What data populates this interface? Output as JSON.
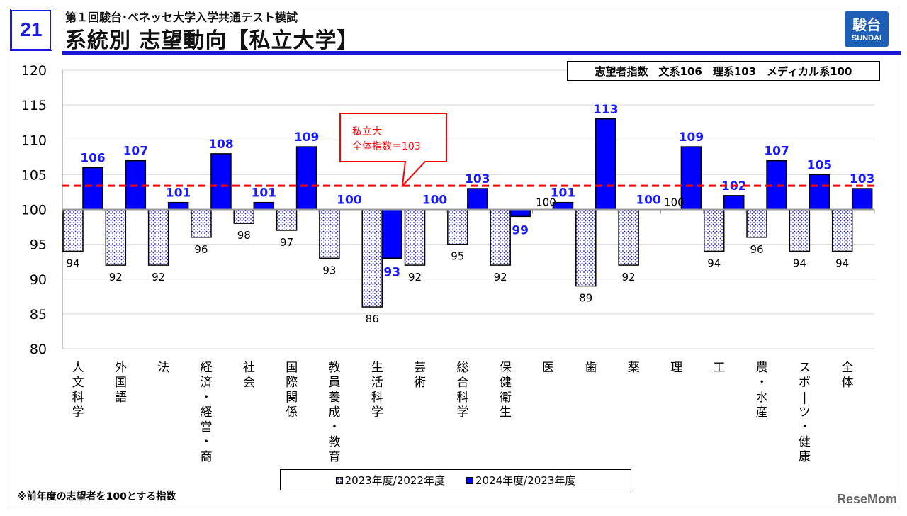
{
  "header": {
    "slide_number": "21",
    "subtitle": "第１回駿台･ベネッセ大学入学共通テスト模試",
    "title": "系統別 志望動向【私立大学】",
    "logo_kanji": "駿台",
    "logo_en": "SUNDAI"
  },
  "index_box": "志望者指数　文系106　理系103　メディカル系100",
  "note": "※前年度の志望者を100とする指数",
  "watermark": "ReseMom",
  "colors": {
    "series2024": "#0000ff",
    "series2023_dots": "#1a1ad0",
    "reference": "#ff0000"
  },
  "chart_data": {
    "type": "bar",
    "categories": [
      "人文科学",
      "外国語",
      "法",
      "経済・経営・商",
      "社会",
      "国際関係",
      "教員養成・教育",
      "生活科学",
      "芸術",
      "総合科学",
      "保健衛生",
      "医",
      "歯",
      "薬",
      "理",
      "工",
      "農・水産",
      "スポーツ・健康",
      "全体"
    ],
    "series": [
      {
        "name": "2023年度/2022年度",
        "values": [
          94,
          92,
          92,
          96,
          98,
          97,
          93,
          86,
          92,
          95,
          92,
          100,
          89,
          92,
          100,
          94,
          96,
          94,
          94
        ]
      },
      {
        "name": "2024年度/2023年度",
        "values": [
          106,
          107,
          101,
          108,
          101,
          109,
          100,
          93,
          100,
          103,
          99,
          101,
          113,
          100,
          109,
          102,
          107,
          105,
          103
        ]
      }
    ],
    "baseline": 100,
    "ylim": [
      80,
      120
    ],
    "yticks": [
      80,
      85,
      90,
      95,
      100,
      105,
      110,
      115,
      120
    ],
    "grid": true,
    "legend": "bottom",
    "reference_line": {
      "value": 103.4,
      "label_line1": "私立大",
      "label_line2": "全体指数＝103"
    }
  }
}
